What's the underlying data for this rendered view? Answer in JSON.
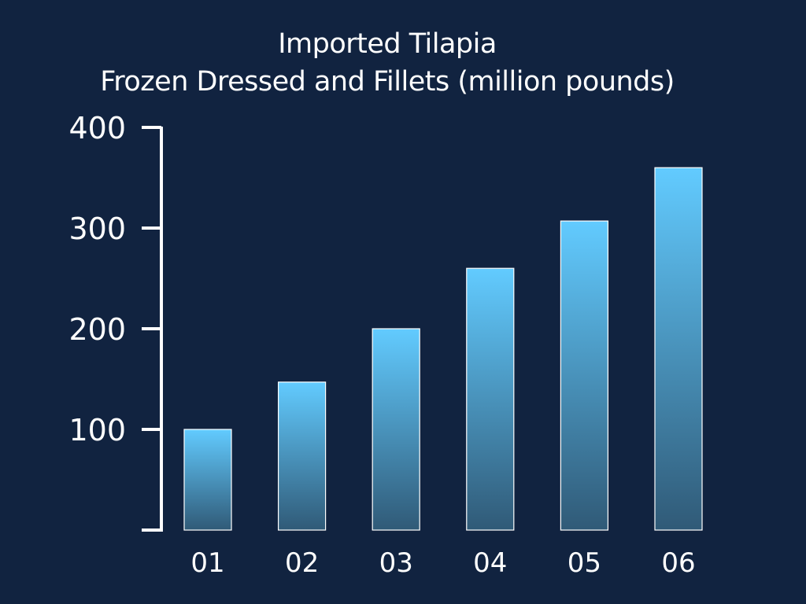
{
  "chart_data": {
    "type": "bar",
    "title": [
      "Imported Tilapia",
      "Frozen Dressed and Fillets (million pounds)"
    ],
    "categories": [
      "01",
      "02",
      "03",
      "04",
      "05",
      "06"
    ],
    "values": [
      100,
      147,
      200,
      260,
      307,
      360
    ],
    "yticks": [
      100,
      200,
      300,
      400
    ],
    "ylim": [
      0,
      400
    ],
    "grid": false,
    "legend": "none",
    "colors": {
      "background": "#112340",
      "bar_top": "#62cbff",
      "bar_bottom": "#305a77",
      "axis": "#ffffff",
      "text": "#ffffff"
    }
  }
}
